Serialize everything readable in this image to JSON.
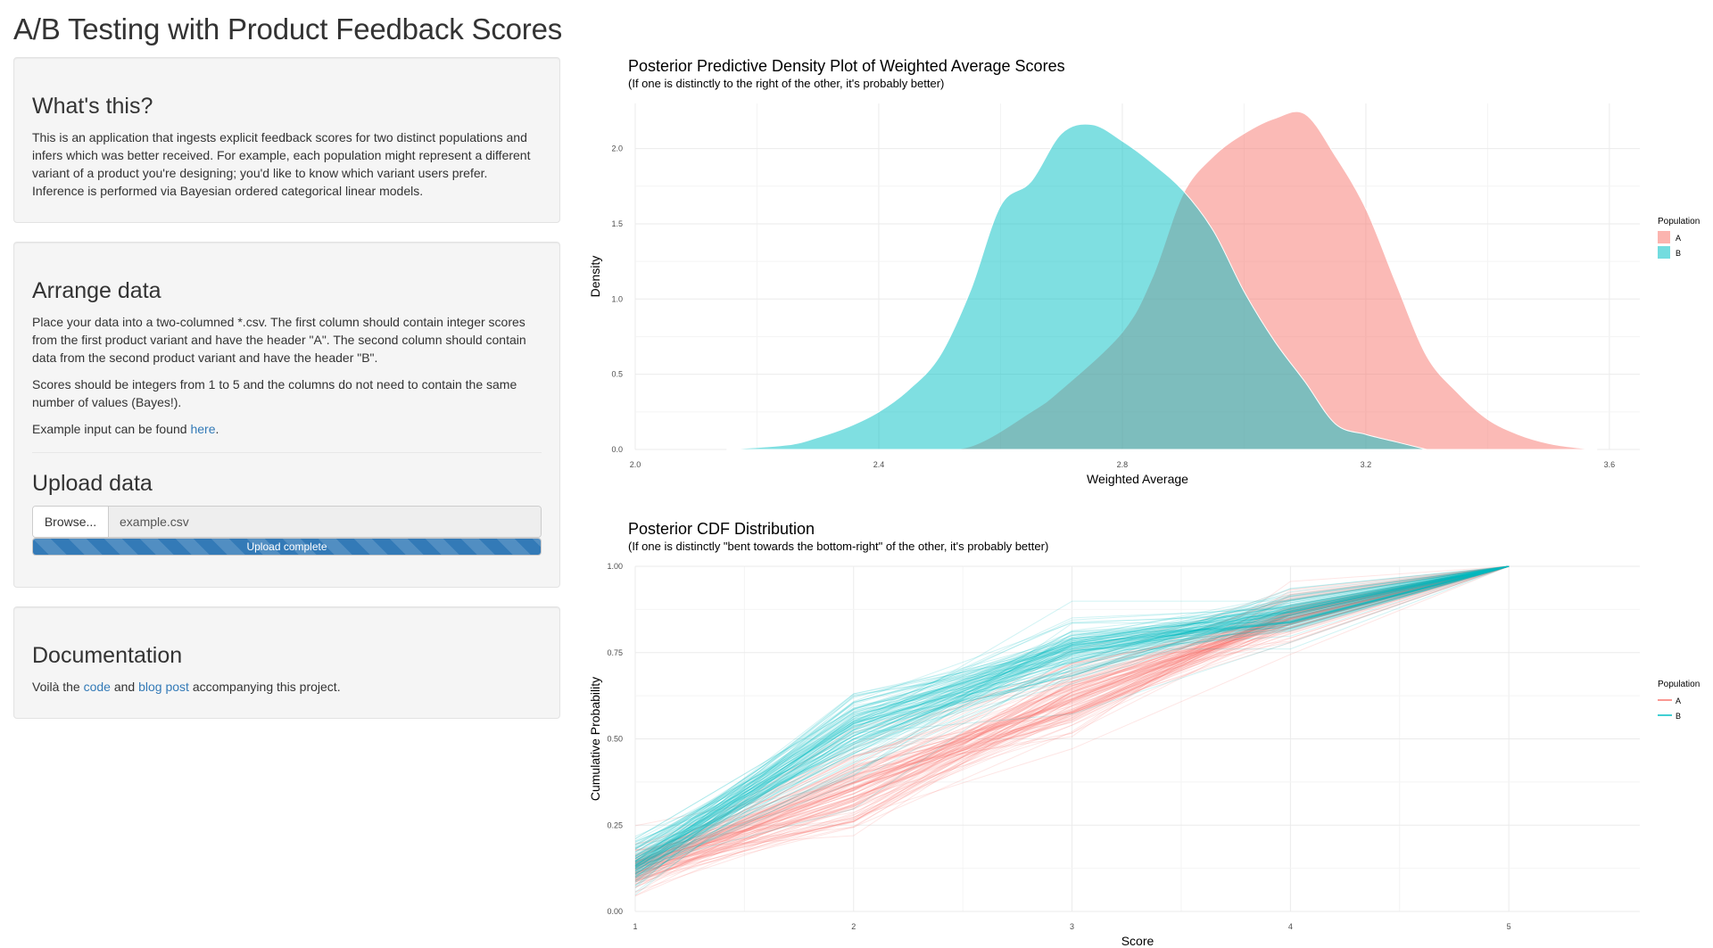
{
  "page": {
    "title": "A/B Testing with Product Feedback Scores"
  },
  "about": {
    "heading": "What's this?",
    "text": "This is an application that ingests explicit feedback scores for two distinct populations and infers which was better received. For example, each population might represent a different variant of a product you're designing; you'd like to know which variant users prefer. Inference is performed via Bayesian ordered categorical linear models."
  },
  "arrange": {
    "heading": "Arrange data",
    "p1": "Place your data into a two-columned *.csv. The first column should contain integer scores from the first product variant and have the header \"A\". The second column should contain data from the second product variant and have the header \"B\".",
    "p2": "Scores should be integers from 1 to 5 and the columns do not need to contain the same number of values (Bayes!).",
    "p3_prefix": "Example input can be found ",
    "p3_link": "here",
    "p3_suffix": "."
  },
  "upload": {
    "heading": "Upload data",
    "browse_label": "Browse...",
    "file_name": "example.csv",
    "progress_label": "Upload complete",
    "progress": 1.0
  },
  "docs": {
    "heading": "Documentation",
    "prefix": "Voilà the ",
    "link1": "code",
    "middle": " and ",
    "link2": "blog post",
    "suffix": " accompanying this project."
  },
  "colors": {
    "A": "#f8766d",
    "B": "#00bfc4",
    "link": "#337ab7",
    "progress": "#337ab7"
  },
  "chart_data": [
    {
      "type": "area",
      "title": "Posterior Predictive Density Plot of Weighted Average Scores",
      "subtitle": "(If one is distinctly to the right of the other, it's probably better)",
      "xlabel": "Weighted Average",
      "ylabel": "Density",
      "xlim": [
        2.0,
        3.65
      ],
      "ylim": [
        0,
        2.3
      ],
      "xticks": [
        "2.0",
        "2.4",
        "2.8",
        "3.2",
        "3.6"
      ],
      "yticks": [
        "0.0",
        "0.5",
        "1.0",
        "1.5",
        "2.0"
      ],
      "legend": {
        "title": "Population",
        "position": "right",
        "entries": [
          "A",
          "B"
        ]
      },
      "grid": true,
      "series": [
        {
          "name": "A",
          "x": [
            2.45,
            2.55,
            2.65,
            2.7,
            2.8,
            2.85,
            2.9,
            2.95,
            3.0,
            3.05,
            3.1,
            3.15,
            3.2,
            3.25,
            3.3,
            3.35,
            3.4,
            3.45,
            3.5,
            3.55,
            3.58
          ],
          "y": [
            0.0,
            0.02,
            0.25,
            0.4,
            0.78,
            1.15,
            1.7,
            1.95,
            2.1,
            2.2,
            2.23,
            1.95,
            1.6,
            1.1,
            0.62,
            0.38,
            0.2,
            0.1,
            0.04,
            0.01,
            0.0
          ]
        },
        {
          "name": "B",
          "x": [
            2.15,
            2.25,
            2.3,
            2.35,
            2.4,
            2.45,
            2.5,
            2.55,
            2.6,
            2.65,
            2.7,
            2.75,
            2.8,
            2.85,
            2.9,
            2.95,
            3.0,
            3.05,
            3.1,
            3.15,
            3.2,
            3.25,
            3.3
          ],
          "y": [
            0.0,
            0.03,
            0.08,
            0.15,
            0.25,
            0.4,
            0.62,
            1.05,
            1.62,
            1.78,
            2.1,
            2.16,
            2.05,
            1.9,
            1.72,
            1.45,
            1.05,
            0.72,
            0.45,
            0.17,
            0.1,
            0.05,
            0.0
          ]
        }
      ]
    },
    {
      "type": "line",
      "title": "Posterior CDF Distribution",
      "subtitle": "(If one is distinctly \"bent towards the bottom-right\" of the other, it's probably better)",
      "xlabel": "Score",
      "ylabel": "Cumulative Probability",
      "xlim": [
        1,
        5.6
      ],
      "ylim": [
        0,
        1
      ],
      "xticks": [
        "1",
        "2",
        "3",
        "4",
        "5"
      ],
      "yticks": [
        "0.00",
        "0.25",
        "0.50",
        "0.75",
        "1.00"
      ],
      "legend": {
        "title": "Population",
        "position": "right",
        "entries": [
          "A",
          "B"
        ]
      },
      "grid": true,
      "series": [
        {
          "name": "A",
          "x": [
            1,
            2,
            3,
            4,
            5
          ],
          "y_mean": [
            0.12,
            0.35,
            0.62,
            0.86,
            1.0
          ],
          "y_spread": [
            0.06,
            0.1,
            0.1,
            0.06,
            0.0
          ]
        },
        {
          "name": "B",
          "x": [
            1,
            2,
            3,
            4,
            5
          ],
          "y_mean": [
            0.14,
            0.52,
            0.76,
            0.86,
            1.0
          ],
          "y_spread": [
            0.07,
            0.1,
            0.08,
            0.06,
            0.0
          ]
        }
      ]
    }
  ]
}
